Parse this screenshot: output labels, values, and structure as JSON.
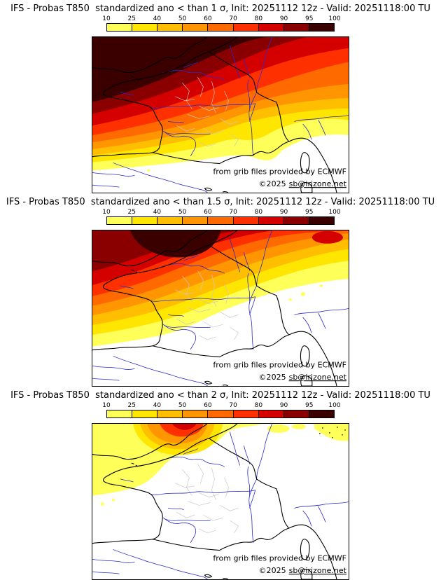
{
  "page": {
    "background": "#ffffff"
  },
  "panels": [
    {
      "threshold_sigma": "1",
      "title": "IFS - Probas T850  standardized ano < than 1 σ, Init: 20251112 12z - Valid: 20251118:00 TU"
    },
    {
      "threshold_sigma": "1.5",
      "title": "IFS - Probas T850  standardized ano < than 1.5 σ, Init: 20251112 12z - Valid: 20251118:00 TU"
    },
    {
      "threshold_sigma": "2",
      "title": "IFS - Probas T850  standardized ano < than 2 σ, Init: 20251112 12z - Valid: 20251118:00 TU"
    }
  ],
  "colorbar": {
    "ticks": [
      "10",
      "25",
      "40",
      "50",
      "60",
      "70",
      "80",
      "90",
      "95",
      "100"
    ],
    "colors": [
      "#ffff5a",
      "#ffe600",
      "#ffbf00",
      "#ff9500",
      "#ff6a00",
      "#ff3000",
      "#d40000",
      "#8a0000",
      "#3a0000"
    ]
  },
  "attribution": {
    "line1": "from grib files provided by ECMWF",
    "copyright": "©2025",
    "email": "sb@irizone.net"
  }
}
